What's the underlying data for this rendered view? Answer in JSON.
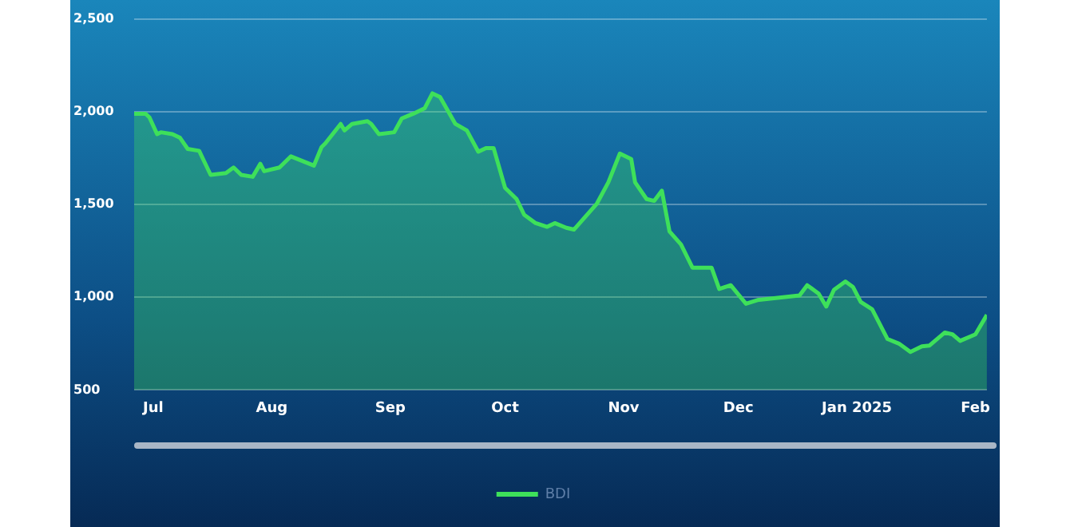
{
  "chart_data": {
    "type": "area",
    "x": [
      "2024-06-26",
      "2024-06-29",
      "2024-06-30",
      "2024-07-02",
      "2024-07-03",
      "2024-07-06",
      "2024-07-08",
      "2024-07-10",
      "2024-07-13",
      "2024-07-16",
      "2024-07-20",
      "2024-07-22",
      "2024-07-24",
      "2024-07-27",
      "2024-07-29",
      "2024-07-30",
      "2024-08-03",
      "2024-08-06",
      "2024-08-12",
      "2024-08-14",
      "2024-08-15",
      "2024-08-19",
      "2024-08-20",
      "2024-08-22",
      "2024-08-26",
      "2024-08-27",
      "2024-08-29",
      "2024-09-02",
      "2024-09-04",
      "2024-09-07",
      "2024-09-10",
      "2024-09-12",
      "2024-09-14",
      "2024-09-18",
      "2024-09-21",
      "2024-09-24",
      "2024-09-26",
      "2024-09-28",
      "2024-10-01",
      "2024-10-04",
      "2024-10-06",
      "2024-10-09",
      "2024-10-12",
      "2024-10-14",
      "2024-10-17",
      "2024-10-19",
      "2024-10-25",
      "2024-10-28",
      "2024-10-31",
      "2024-11-03",
      "2024-11-04",
      "2024-11-07",
      "2024-11-09",
      "2024-11-11",
      "2024-11-13",
      "2024-11-16",
      "2024-11-19",
      "2024-11-24",
      "2024-11-26",
      "2024-11-29",
      "2024-12-03",
      "2024-12-06",
      "2024-12-17",
      "2024-12-19",
      "2024-12-22",
      "2024-12-24",
      "2024-12-26",
      "2024-12-29",
      "2024-12-31",
      "2025-01-02",
      "2025-01-05",
      "2025-01-09",
      "2025-01-12",
      "2025-01-15",
      "2025-01-18",
      "2025-01-20",
      "2025-01-24",
      "2025-01-26",
      "2025-01-28",
      "2025-02-01",
      "2025-02-04"
    ],
    "series": [
      {
        "name": "BDI",
        "color": "#3ee05a",
        "values": [
          1990,
          1990,
          1970,
          1880,
          1890,
          1880,
          1860,
          1800,
          1790,
          1660,
          1670,
          1700,
          1660,
          1650,
          1720,
          1680,
          1700,
          1760,
          1710,
          1810,
          1830,
          1935,
          1900,
          1935,
          1950,
          1935,
          1880,
          1890,
          1965,
          1990,
          2020,
          2100,
          2080,
          1935,
          1900,
          1785,
          1805,
          1805,
          1590,
          1530,
          1445,
          1400,
          1380,
          1400,
          1375,
          1365,
          1505,
          1620,
          1775,
          1745,
          1620,
          1530,
          1520,
          1575,
          1355,
          1285,
          1160,
          1160,
          1045,
          1065,
          965,
          985,
          1010,
          1065,
          1020,
          950,
          1040,
          1085,
          1055,
          975,
          935,
          775,
          750,
          705,
          735,
          740,
          810,
          800,
          765,
          800,
          905
        ]
      }
    ],
    "xlim": [
      "2024-06-26",
      "2025-02-04"
    ],
    "xticks": [
      {
        "value": "2024-07-01",
        "label": "Jul"
      },
      {
        "value": "2024-08-01",
        "label": "Aug"
      },
      {
        "value": "2024-09-01",
        "label": "Sep"
      },
      {
        "value": "2024-10-01",
        "label": "Oct"
      },
      {
        "value": "2024-11-01",
        "label": "Nov"
      },
      {
        "value": "2024-12-01",
        "label": "Dec"
      },
      {
        "value": "2025-01-01",
        "label": "Jan 2025"
      },
      {
        "value": "2025-02-01",
        "label": "Feb"
      }
    ],
    "ylim": [
      500,
      2500
    ],
    "yticks": [
      500,
      {
        "value": 1000,
        "label": "1,000"
      },
      {
        "value": 1500,
        "label": "1,500"
      },
      {
        "value": 2000,
        "label": "2,000"
      },
      {
        "value": 2500,
        "label": "2,500"
      }
    ],
    "grid": "y",
    "legend": "bottom",
    "marker": "none",
    "line_style": "solid"
  }
}
